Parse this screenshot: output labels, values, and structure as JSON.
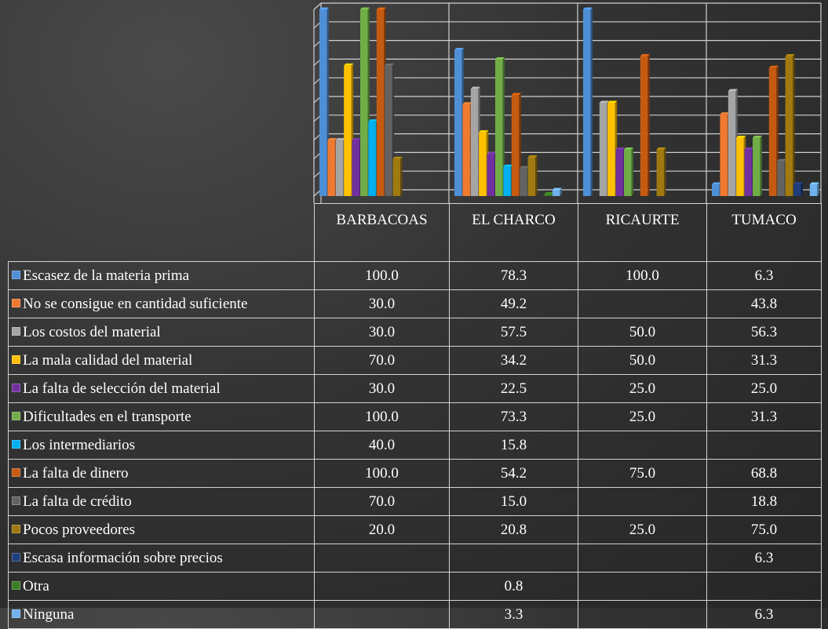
{
  "chart_data": {
    "type": "bar",
    "categories": [
      "BARBACOAS",
      "EL CHARCO",
      "RICAURTE",
      "TUMACO"
    ],
    "ylim": [
      0,
      100
    ],
    "grid": true,
    "legend": "data-table",
    "series": [
      {
        "name": "Escasez de la materia prima",
        "color": "#4f8fd6",
        "values": [
          100.0,
          78.3,
          100.0,
          6.3
        ],
        "labels": [
          "100.0",
          "78.3",
          "100.0",
          "6.3"
        ]
      },
      {
        "name": "No se consigue en cantidad suficiente",
        "color": "#ef7a30",
        "values": [
          30.0,
          49.2,
          null,
          43.8
        ],
        "labels": [
          "30.0",
          "49.2",
          "",
          "43.8"
        ]
      },
      {
        "name": "Los costos del material",
        "color": "#a5a5a5",
        "values": [
          30.0,
          57.5,
          50.0,
          56.3
        ],
        "labels": [
          "30.0",
          "57.5",
          "50.0",
          "56.3"
        ]
      },
      {
        "name": "La mala calidad del material",
        "color": "#ffc000",
        "values": [
          70.0,
          34.2,
          50.0,
          31.3
        ],
        "labels": [
          "70.0",
          "34.2",
          "50.0",
          "31.3"
        ]
      },
      {
        "name": "La falta de selección del material",
        "color": "#7030a0",
        "values": [
          30.0,
          22.5,
          25.0,
          25.0
        ],
        "labels": [
          "30.0",
          "22.5",
          "25.0",
          "25.0"
        ]
      },
      {
        "name": "Dificultades en el transporte",
        "color": "#70ad47",
        "values": [
          100.0,
          73.3,
          25.0,
          31.3
        ],
        "labels": [
          "100.0",
          "73.3",
          "25.0",
          "31.3"
        ]
      },
      {
        "name": "Los intermediarios",
        "color": "#00b0f0",
        "values": [
          40.0,
          15.8,
          null,
          null
        ],
        "labels": [
          "40.0",
          "15.8",
          "",
          ""
        ]
      },
      {
        "name": "La falta de dinero",
        "color": "#c55a11",
        "values": [
          100.0,
          54.2,
          75.0,
          68.8
        ],
        "labels": [
          "100.0",
          "54.2",
          "75.0",
          "68.8"
        ]
      },
      {
        "name": "La falta de crédito",
        "color": "#636363",
        "values": [
          70.0,
          15.0,
          null,
          18.8
        ],
        "labels": [
          "70.0",
          "15.0",
          "",
          "18.8"
        ]
      },
      {
        "name": "Pocos proveedores",
        "color": "#a07a10",
        "values": [
          20.0,
          20.8,
          25.0,
          75.0
        ],
        "labels": [
          "20.0",
          "20.8",
          "25.0",
          "75.0"
        ]
      },
      {
        "name": "Escasa información sobre precios",
        "color": "#1f3d7a",
        "values": [
          null,
          null,
          null,
          6.3
        ],
        "labels": [
          "",
          "",
          "",
          "6.3"
        ]
      },
      {
        "name": "Otra",
        "color": "#3b7d23",
        "values": [
          null,
          0.8,
          null,
          null
        ],
        "labels": [
          "",
          "0.8",
          "",
          ""
        ]
      },
      {
        "name": "Ninguna",
        "color": "#6fb1ec",
        "values": [
          null,
          3.3,
          null,
          6.3
        ],
        "labels": [
          "",
          "3.3",
          "",
          "6.3"
        ]
      }
    ]
  }
}
